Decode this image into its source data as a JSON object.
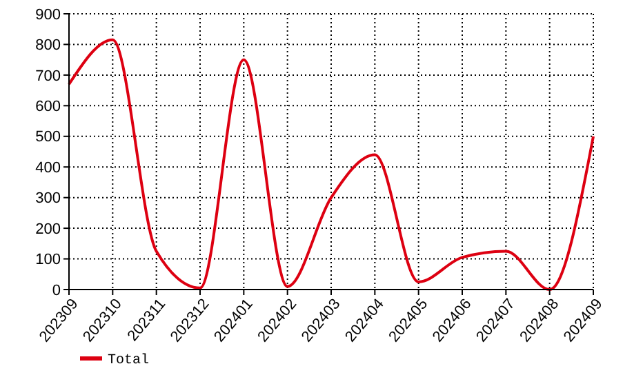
{
  "chart_data": {
    "type": "line",
    "categories": [
      "202309",
      "202310",
      "202311",
      "202312",
      "202401",
      "202402",
      "202403",
      "202404",
      "202405",
      "202406",
      "202407",
      "202408",
      "202409"
    ],
    "series": [
      {
        "name": "Total",
        "color": "#dd0011",
        "values": [
          670,
          815,
          125,
          5,
          750,
          10,
          300,
          440,
          25,
          105,
          125,
          0,
          500
        ]
      }
    ],
    "ylim": [
      0,
      900
    ],
    "yticks": [
      0,
      100,
      200,
      300,
      400,
      500,
      600,
      700,
      800,
      900
    ],
    "grid": true,
    "legend": "bottom left",
    "marker": "none"
  }
}
